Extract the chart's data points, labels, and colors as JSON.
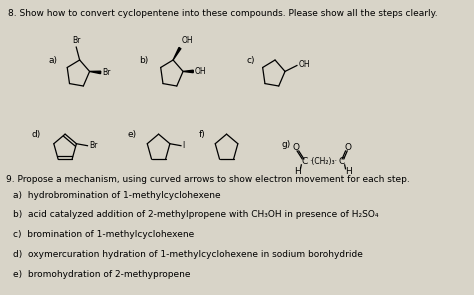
{
  "background_color": "#d8d4c8",
  "title_q8": "8. Show how to convert cyclopentene into these compounds. Please show all the steps clearly.",
  "title_q9": "9. Propose a mechanism, using curved arrows to show electron movement for each step.",
  "q9_items": [
    "a)  hydrobromination of 1-methylcyclohexene",
    "b)  acid catalyzed addition of 2-methylpropene with CH₃OH in presence of H₂SO₄",
    "c)  bromination of 1-methylcyclohexene",
    "d)  oxymercuration hydration of 1-methylcyclohexene in sodium borohydride",
    "e)  bromohydration of 2-methypropene"
  ],
  "fontsize_main": 6.5,
  "fontsize_label": 6.5,
  "fontsize_small": 5.5
}
